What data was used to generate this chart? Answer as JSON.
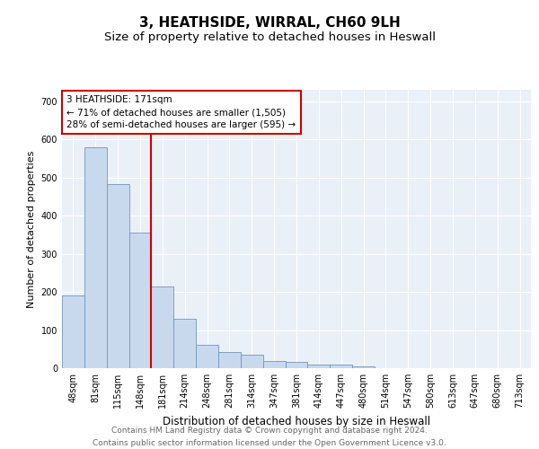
{
  "title": "3, HEATHSIDE, WIRRAL, CH60 9LH",
  "subtitle": "Size of property relative to detached houses in Heswall",
  "xlabel": "Distribution of detached houses by size in Heswall",
  "ylabel": "Number of detached properties",
  "bar_labels": [
    "48sqm",
    "81sqm",
    "115sqm",
    "148sqm",
    "181sqm",
    "214sqm",
    "248sqm",
    "281sqm",
    "314sqm",
    "347sqm",
    "381sqm",
    "414sqm",
    "447sqm",
    "480sqm",
    "514sqm",
    "547sqm",
    "580sqm",
    "613sqm",
    "647sqm",
    "680sqm",
    "713sqm"
  ],
  "bar_values": [
    190,
    580,
    483,
    355,
    215,
    130,
    62,
    42,
    35,
    18,
    16,
    10,
    10,
    5,
    0,
    0,
    0,
    0,
    0,
    0,
    0
  ],
  "bar_color": "#c9d9ed",
  "bar_edge_color": "#7096bc",
  "vline_color": "#cc0000",
  "annotation_text": "3 HEATHSIDE: 171sqm\n← 71% of detached houses are smaller (1,505)\n28% of semi-detached houses are larger (595) →",
  "annotation_box_color": "#ffffff",
  "annotation_box_edge": "#cc0000",
  "ylim": [
    0,
    730
  ],
  "yticks": [
    0,
    100,
    200,
    300,
    400,
    500,
    600,
    700
  ],
  "background_color": "#eaf0f8",
  "footer_line1": "Contains HM Land Registry data © Crown copyright and database right 2024.",
  "footer_line2": "Contains public sector information licensed under the Open Government Licence v3.0.",
  "title_fontsize": 11,
  "subtitle_fontsize": 9.5,
  "xlabel_fontsize": 8.5,
  "ylabel_fontsize": 8,
  "tick_fontsize": 7,
  "annotation_fontsize": 7.5,
  "footer_fontsize": 6.5
}
